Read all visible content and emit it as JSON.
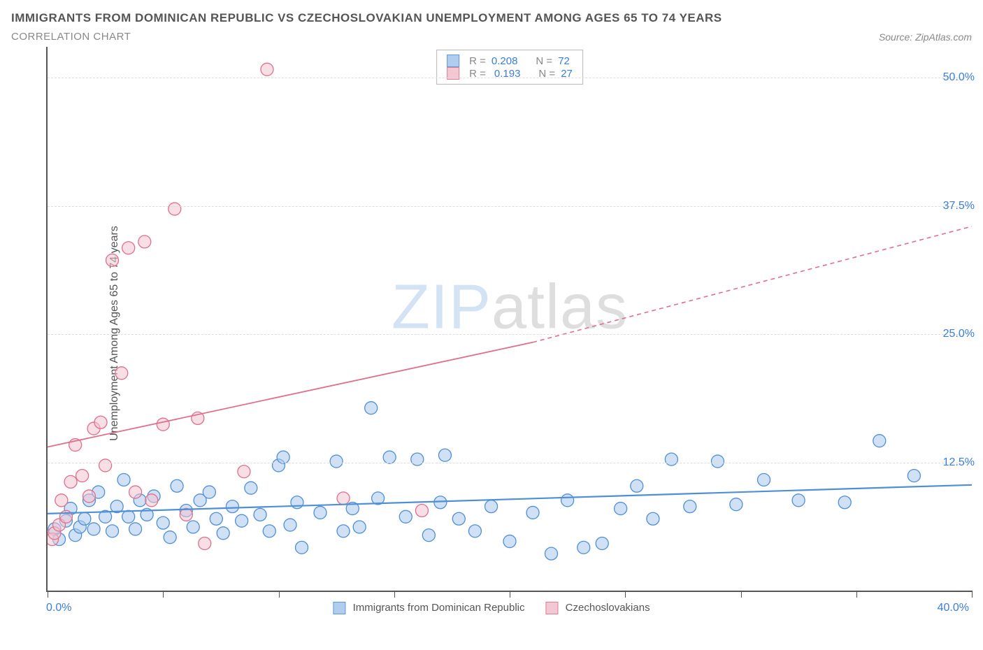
{
  "title": "IMMIGRANTS FROM DOMINICAN REPUBLIC VS CZECHOSLOVAKIAN UNEMPLOYMENT AMONG AGES 65 TO 74 YEARS",
  "subtitle": "CORRELATION CHART",
  "source": "Source: ZipAtlas.com",
  "ylabel": "Unemployment Among Ages 65 to 74 years",
  "watermark_bold": "ZIP",
  "watermark_thin": "atlas",
  "chart": {
    "type": "scatter",
    "xlim": [
      0,
      40
    ],
    "ylim": [
      0,
      53
    ],
    "x_tick_positions_pct": [
      0,
      12.5,
      25,
      37.5,
      50,
      62.5,
      75,
      87.5,
      100
    ],
    "y_gridlines": [
      12.5,
      25,
      37.5,
      50
    ],
    "y_right_labels": [
      "12.5%",
      "25.0%",
      "37.5%",
      "50.0%"
    ],
    "x_left_label": "0.0%",
    "x_right_label": "40.0%",
    "background_color": "#ffffff",
    "grid_color": "#dddddd",
    "axis_color": "#555555",
    "marker_radius": 9,
    "marker_stroke_width": 1.3,
    "series": [
      {
        "name": "Immigrants from Dominican Republic",
        "fill": "#a9c8ed",
        "stroke": "#4f8fd6",
        "fill_opacity": 0.55,
        "R": "0.208",
        "N": "72",
        "trend": {
          "x1": 0,
          "y1": 7.5,
          "x2": 40,
          "y2": 10.3,
          "dash": null,
          "width": 2.2
        },
        "points": [
          [
            0.3,
            6.0
          ],
          [
            0.5,
            5.0
          ],
          [
            0.8,
            6.8
          ],
          [
            1.0,
            8.0
          ],
          [
            1.2,
            5.4
          ],
          [
            1.4,
            6.2
          ],
          [
            1.6,
            7.0
          ],
          [
            1.8,
            8.8
          ],
          [
            2.0,
            6.0
          ],
          [
            2.2,
            9.6
          ],
          [
            2.5,
            7.2
          ],
          [
            2.8,
            5.8
          ],
          [
            3.0,
            8.2
          ],
          [
            3.3,
            10.8
          ],
          [
            3.5,
            7.2
          ],
          [
            3.8,
            6.0
          ],
          [
            4.0,
            8.8
          ],
          [
            4.3,
            7.4
          ],
          [
            4.6,
            9.2
          ],
          [
            5.0,
            6.6
          ],
          [
            5.3,
            5.2
          ],
          [
            5.6,
            10.2
          ],
          [
            6.0,
            7.8
          ],
          [
            6.3,
            6.2
          ],
          [
            6.6,
            8.8
          ],
          [
            7.0,
            9.6
          ],
          [
            7.3,
            7.0
          ],
          [
            7.6,
            5.6
          ],
          [
            8.0,
            8.2
          ],
          [
            8.4,
            6.8
          ],
          [
            8.8,
            10.0
          ],
          [
            9.2,
            7.4
          ],
          [
            9.6,
            5.8
          ],
          [
            10.0,
            12.2
          ],
          [
            10.2,
            13.0
          ],
          [
            10.5,
            6.4
          ],
          [
            10.8,
            8.6
          ],
          [
            11.0,
            4.2
          ],
          [
            11.8,
            7.6
          ],
          [
            12.5,
            12.6
          ],
          [
            12.8,
            5.8
          ],
          [
            13.2,
            8.0
          ],
          [
            13.5,
            6.2
          ],
          [
            14.0,
            17.8
          ],
          [
            14.3,
            9.0
          ],
          [
            14.8,
            13.0
          ],
          [
            15.5,
            7.2
          ],
          [
            16.0,
            12.8
          ],
          [
            16.5,
            5.4
          ],
          [
            17.0,
            8.6
          ],
          [
            17.2,
            13.2
          ],
          [
            17.8,
            7.0
          ],
          [
            18.5,
            5.8
          ],
          [
            19.2,
            8.2
          ],
          [
            20.0,
            4.8
          ],
          [
            21.0,
            7.6
          ],
          [
            21.8,
            3.6
          ],
          [
            22.5,
            8.8
          ],
          [
            23.2,
            4.2
          ],
          [
            24.0,
            4.6
          ],
          [
            24.8,
            8.0
          ],
          [
            25.5,
            10.2
          ],
          [
            26.2,
            7.0
          ],
          [
            27.0,
            12.8
          ],
          [
            27.8,
            8.2
          ],
          [
            29.0,
            12.6
          ],
          [
            29.8,
            8.4
          ],
          [
            31.0,
            10.8
          ],
          [
            32.5,
            8.8
          ],
          [
            34.5,
            8.6
          ],
          [
            36.0,
            14.6
          ],
          [
            37.5,
            11.2
          ]
        ]
      },
      {
        "name": "Czechoslovakians",
        "fill": "#f3c3cf",
        "stroke": "#e06f8b",
        "fill_opacity": 0.55,
        "R": "0.193",
        "N": "27",
        "trend": {
          "x1": 0,
          "y1": 14.0,
          "x2": 21,
          "y2": 24.2,
          "dash": null,
          "width": 1.8
        },
        "trend_ext": {
          "x1": 21,
          "y1": 24.2,
          "x2": 40,
          "y2": 35.5,
          "dash": "6,5",
          "width": 1.6
        },
        "points": [
          [
            0.2,
            5.0
          ],
          [
            0.3,
            5.6
          ],
          [
            0.5,
            6.4
          ],
          [
            0.6,
            8.8
          ],
          [
            0.8,
            7.2
          ],
          [
            1.0,
            10.6
          ],
          [
            1.2,
            14.2
          ],
          [
            1.5,
            11.2
          ],
          [
            1.8,
            9.2
          ],
          [
            2.0,
            15.8
          ],
          [
            2.3,
            16.4
          ],
          [
            2.5,
            12.2
          ],
          [
            2.8,
            32.2
          ],
          [
            3.2,
            21.2
          ],
          [
            3.5,
            33.4
          ],
          [
            3.8,
            9.6
          ],
          [
            4.2,
            34.0
          ],
          [
            4.5,
            8.8
          ],
          [
            5.0,
            16.2
          ],
          [
            5.5,
            37.2
          ],
          [
            6.0,
            7.4
          ],
          [
            6.5,
            16.8
          ],
          [
            6.8,
            4.6
          ],
          [
            8.5,
            11.6
          ],
          [
            9.5,
            50.8
          ],
          [
            12.8,
            9.0
          ],
          [
            16.2,
            7.8
          ]
        ]
      }
    ]
  },
  "legend_top": {
    "lab_R": "R =",
    "lab_N": "N ="
  },
  "colors": {
    "value_text": "#3b7dd8",
    "label_text": "#888888"
  }
}
